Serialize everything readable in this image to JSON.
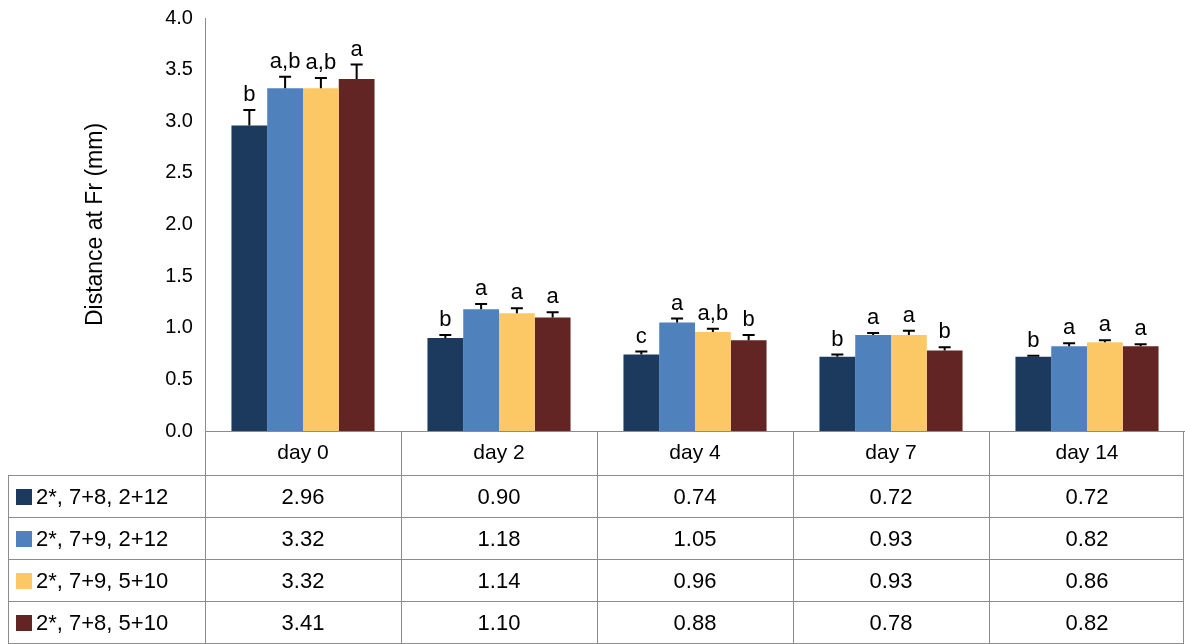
{
  "chart_data": {
    "type": "bar",
    "ylabel": "Distance at Fr (mm)",
    "categories": [
      "day 0",
      "day 2",
      "day 4",
      "day 7",
      "day 14"
    ],
    "series": [
      {
        "name": "2*, 7+8, 2+12",
        "color": "#1b3a5e",
        "values": [
          2.96,
          0.9,
          0.74,
          0.72,
          0.72
        ],
        "value_labels": [
          "2.96",
          "0.90",
          "0.74",
          "0.72",
          "0.72"
        ],
        "errors": [
          [
            2.96,
            3.11
          ],
          [
            0.9,
            0.93
          ],
          [
            0.74,
            0.77
          ],
          [
            0.72,
            0.74
          ],
          [
            0.72,
            0.73
          ]
        ]
      },
      {
        "name": "2*, 7+9, 2+12",
        "color": "#4f81bd",
        "values": [
          3.32,
          1.18,
          1.05,
          0.93,
          0.82
        ],
        "value_labels": [
          "3.32",
          "1.18",
          "1.05",
          "0.93",
          "0.82"
        ],
        "errors": [
          [
            3.32,
            3.43
          ],
          [
            1.18,
            1.23
          ],
          [
            1.05,
            1.09
          ],
          [
            0.93,
            0.95
          ],
          [
            0.82,
            0.85
          ]
        ]
      },
      {
        "name": "2*, 7+9, 5+10",
        "color": "#fcc865",
        "values": [
          3.32,
          1.14,
          0.96,
          0.93,
          0.86
        ],
        "value_labels": [
          "3.32",
          "1.14",
          "0.96",
          "0.93",
          "0.86"
        ],
        "errors": [
          [
            3.32,
            3.42
          ],
          [
            1.14,
            1.19
          ],
          [
            0.96,
            0.99
          ],
          [
            0.93,
            0.97
          ],
          [
            0.86,
            0.88
          ]
        ]
      },
      {
        "name": "2*, 7+8, 5+10",
        "color": "#632523",
        "values": [
          3.41,
          1.1,
          0.88,
          0.78,
          0.82
        ],
        "value_labels": [
          "3.41",
          "1.10",
          "0.88",
          "0.78",
          "0.82"
        ],
        "errors": [
          [
            3.41,
            3.55
          ],
          [
            1.1,
            1.15
          ],
          [
            0.88,
            0.93
          ],
          [
            0.78,
            0.81
          ],
          [
            0.82,
            0.84
          ]
        ]
      }
    ],
    "annotations": [
      "b",
      "a,b",
      "a,b",
      "a",
      "b",
      "a",
      "a",
      "a",
      "c",
      "a",
      "a,b",
      "b",
      "b",
      "a",
      "a",
      "b",
      "b",
      "a",
      "a",
      "a"
    ],
    "ylim": [
      0,
      4
    ],
    "yticks": [
      {
        "value": 0,
        "label": "0.0"
      },
      0.5,
      {
        "value": 1,
        "label": "1.0"
      },
      1.5,
      {
        "value": 2,
        "label": "2.0"
      },
      2.5,
      {
        "value": 3,
        "label": "3.0"
      },
      3.5,
      {
        "value": 4,
        "label": "4.0"
      }
    ],
    "grid": false,
    "legend": "bottom"
  }
}
